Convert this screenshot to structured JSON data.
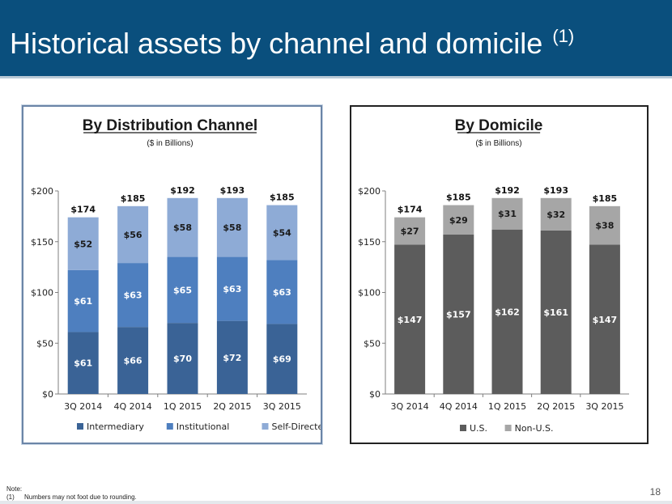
{
  "page": {
    "title": "Historical assets by channel and domicile",
    "title_superscript": "(1)",
    "note_heading": "Note:",
    "note_index": "(1)",
    "note_text": "Numbers may not foot due to rounding.",
    "page_number": "18"
  },
  "colors": {
    "header_bg": "#0a4f7d",
    "intermediary": "#3a6396",
    "institutional": "#4e7fbf",
    "self_directed": "#8eabd6",
    "us": "#5c5c5c",
    "non_us": "#a6a6a6"
  },
  "chart_data": [
    {
      "type": "bar",
      "stacked": true,
      "title": "By Distribution Channel",
      "subtitle": "($ in Billions)",
      "categories": [
        "3Q 2014",
        "4Q 2014",
        "1Q 2015",
        "2Q 2015",
        "3Q 2015"
      ],
      "ylim": [
        0,
        200
      ],
      "yticks": [
        0,
        50,
        100,
        150,
        200
      ],
      "ytick_labels": [
        "$0",
        "$50",
        "$100",
        "$150",
        "$200"
      ],
      "series": [
        {
          "name": "Intermediary",
          "values": [
            61,
            66,
            70,
            72,
            69
          ],
          "labels": [
            "$61",
            "$66",
            "$70",
            "$72",
            "$69"
          ],
          "color": "#3a6396"
        },
        {
          "name": "Institutional",
          "values": [
            61,
            63,
            65,
            63,
            63
          ],
          "labels": [
            "$61",
            "$63",
            "$65",
            "$63",
            "$63"
          ],
          "color": "#4e7fbf"
        },
        {
          "name": "Self-Directed",
          "values": [
            52,
            56,
            58,
            58,
            54
          ],
          "labels": [
            "$52",
            "$56",
            "$58",
            "$58",
            "$54"
          ],
          "color": "#8eabd6"
        }
      ],
      "totals": [
        174,
        185,
        192,
        193,
        185
      ],
      "total_labels": [
        "$174",
        "$185",
        "$192",
        "$193",
        "$185"
      ],
      "legend": "bottom",
      "grid": false
    },
    {
      "type": "bar",
      "stacked": true,
      "title": "By Domicile",
      "subtitle": "($ in Billions)",
      "categories": [
        "3Q 2014",
        "4Q 2014",
        "1Q 2015",
        "2Q 2015",
        "3Q 2015"
      ],
      "ylim": [
        0,
        200
      ],
      "yticks": [
        0,
        50,
        100,
        150,
        200
      ],
      "ytick_labels": [
        "$0",
        "$50",
        "$100",
        "$150",
        "$200"
      ],
      "series": [
        {
          "name": "U.S.",
          "values": [
            147,
            157,
            162,
            161,
            147
          ],
          "labels": [
            "$147",
            "$157",
            "$162",
            "$161",
            "$147"
          ],
          "color": "#5c5c5c"
        },
        {
          "name": "Non-U.S.",
          "values": [
            27,
            29,
            31,
            32,
            38
          ],
          "labels": [
            "$27",
            "$29",
            "$31",
            "$32",
            "$38"
          ],
          "color": "#a6a6a6"
        }
      ],
      "totals": [
        174,
        185,
        192,
        193,
        185
      ],
      "total_labels": [
        "$174",
        "$185",
        "$192",
        "$193",
        "$185"
      ],
      "legend": "bottom",
      "grid": false
    }
  ]
}
